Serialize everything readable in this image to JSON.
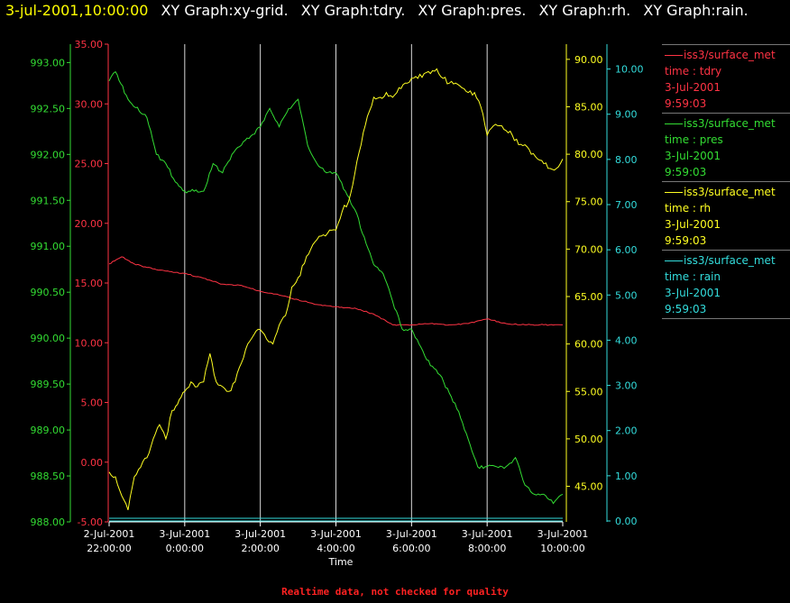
{
  "header": {
    "timestamp": "3-jul-2001,10:00:00",
    "graph_titles": [
      "XY Graph:xy-grid.",
      "XY Graph:tdry.",
      "XY Graph:pres.",
      "XY Graph:rh.",
      "XY Graph:rain."
    ]
  },
  "footer": {
    "note": "Realtime data, not checked for quality"
  },
  "colors": {
    "timestamp": "#ffff00",
    "titles": "#ffffff",
    "tdry": "#ff3344",
    "pres": "#33dd33",
    "rh": "#ffff22",
    "rain": "#33dddd",
    "grid": "#ffffff",
    "footer": "#ff2222"
  },
  "legend": [
    {
      "series": "tdry",
      "name": "iss3/surface_met",
      "var": "time : tdry",
      "date": "3-Jul-2001",
      "time": "9:59:03"
    },
    {
      "series": "pres",
      "name": "iss3/surface_met",
      "var": "time : pres",
      "date": "3-Jul-2001",
      "time": "9:59:03"
    },
    {
      "series": "rh",
      "name": "iss3/surface_met",
      "var": "time : rh",
      "date": "3-Jul-2001",
      "time": "9:59:03"
    },
    {
      "series": "rain",
      "name": "iss3/surface_met",
      "var": "time : rain",
      "date": "3-Jul-2001",
      "time": "9:59:03"
    }
  ],
  "chart_data": {
    "type": "line",
    "xlabel": "Time",
    "x_range": [
      "2-Jul-2001 22:00:00",
      "3-Jul-2001 10:00:00"
    ],
    "x_ticks": [
      {
        "date": "2-Jul-2001",
        "time": "22:00:00"
      },
      {
        "date": "3-Jul-2001",
        "time": "0:00:00"
      },
      {
        "date": "3-Jul-2001",
        "time": "2:00:00"
      },
      {
        "date": "3-Jul-2001",
        "time": "4:00:00"
      },
      {
        "date": "3-Jul-2001",
        "time": "6:00:00"
      },
      {
        "date": "3-Jul-2001",
        "time": "8:00:00"
      },
      {
        "date": "3-Jul-2001",
        "time": "10:00:00"
      }
    ],
    "grid": "vertical",
    "axes": {
      "pres": {
        "side": "left",
        "ylim": [
          988.0,
          993.2
        ],
        "ticks": [
          "988.00",
          "988.50",
          "989.00",
          "989.50",
          "990.00",
          "990.50",
          "991.00",
          "991.50",
          "992.00",
          "992.50",
          "993.00"
        ]
      },
      "tdry": {
        "side": "left",
        "ylim": [
          -5,
          35
        ],
        "ticks": [
          "-5.00",
          "0.00",
          "5.00",
          "10.00",
          "15.00",
          "20.00",
          "25.00",
          "30.00",
          "35.00"
        ]
      },
      "rh": {
        "side": "right",
        "ylim": [
          41.25,
          91.6
        ],
        "ticks": [
          "45.00",
          "50.00",
          "55.00",
          "60.00",
          "65.00",
          "70.00",
          "75.00",
          "80.00",
          "85.00",
          "90.00"
        ]
      },
      "rain": {
        "side": "right",
        "ylim": [
          -0.02,
          10.55
        ],
        "ticks": [
          "0.00",
          "1.00",
          "2.00",
          "3.00",
          "4.00",
          "5.00",
          "6.00",
          "7.00",
          "8.00",
          "9.00",
          "10.00"
        ]
      }
    },
    "series": [
      {
        "key": "tdry",
        "x": [
          "22:00",
          "22:20",
          "22:40",
          "23:00",
          "23:30",
          "0:00",
          "0:30",
          "1:00",
          "1:30",
          "2:00",
          "2:30",
          "3:00",
          "3:30",
          "4:00",
          "4:30",
          "5:00",
          "5:30",
          "6:00",
          "6:30",
          "7:00",
          "7:30",
          "8:00",
          "8:30",
          "9:00",
          "9:30",
          "10:00"
        ],
        "values": [
          16.6,
          17.2,
          16.6,
          16.3,
          16.0,
          15.8,
          15.4,
          14.9,
          14.8,
          14.3,
          14.0,
          13.6,
          13.2,
          13.0,
          12.9,
          12.4,
          11.5,
          11.5,
          11.6,
          11.5,
          11.6,
          12.0,
          11.6,
          11.5,
          11.5,
          11.5
        ]
      },
      {
        "key": "pres",
        "x": [
          "22:00",
          "22:10",
          "22:30",
          "23:00",
          "23:15",
          "23:30",
          "23:45",
          "0:00",
          "0:15",
          "0:30",
          "0:45",
          "1:00",
          "1:15",
          "1:30",
          "1:45",
          "2:00",
          "2:15",
          "2:30",
          "2:45",
          "3:00",
          "3:15",
          "3:30",
          "3:45",
          "4:00",
          "4:15",
          "4:30",
          "4:45",
          "5:00",
          "5:15",
          "5:30",
          "5:45",
          "6:00",
          "6:15",
          "6:30",
          "6:45",
          "7:00",
          "7:15",
          "7:30",
          "7:45",
          "8:00",
          "8:15",
          "8:30",
          "8:45",
          "9:00",
          "9:15",
          "9:30",
          "9:45",
          "10:00"
        ],
        "values": [
          992.8,
          992.9,
          992.6,
          992.4,
          992.0,
          991.9,
          991.7,
          991.6,
          991.6,
          991.6,
          991.9,
          991.8,
          992.0,
          992.1,
          992.2,
          992.3,
          992.5,
          992.3,
          992.5,
          992.6,
          992.1,
          991.9,
          991.8,
          991.8,
          991.6,
          991.4,
          991.1,
          990.8,
          990.7,
          990.4,
          990.1,
          990.1,
          989.9,
          989.7,
          989.6,
          989.4,
          989.2,
          988.9,
          988.6,
          988.6,
          988.6,
          988.6,
          988.7,
          988.4,
          988.3,
          988.3,
          988.2,
          988.3
        ]
      },
      {
        "key": "rh",
        "x": [
          "22:00",
          "22:10",
          "22:20",
          "22:30",
          "22:40",
          "22:50",
          "23:00",
          "23:10",
          "23:20",
          "23:30",
          "23:40",
          "0:00",
          "0:10",
          "0:20",
          "0:30",
          "0:40",
          "0:50",
          "1:00",
          "1:10",
          "1:20",
          "1:30",
          "1:40",
          "1:50",
          "2:00",
          "2:10",
          "2:20",
          "2:30",
          "2:40",
          "2:50",
          "3:00",
          "3:10",
          "3:20",
          "3:30",
          "3:40",
          "3:50",
          "4:00",
          "4:10",
          "4:20",
          "4:30",
          "4:40",
          "4:50",
          "5:00",
          "5:10",
          "5:20",
          "5:30",
          "5:40",
          "5:50",
          "6:00",
          "6:10",
          "6:20",
          "6:30",
          "6:40",
          "6:50",
          "7:00",
          "7:10",
          "7:20",
          "7:30",
          "7:40",
          "7:50",
          "8:00",
          "8:10",
          "8:20",
          "8:30",
          "8:40",
          "8:50",
          "9:00",
          "9:10",
          "9:20",
          "9:30",
          "9:40",
          "9:50",
          "10:00"
        ],
        "values": [
          46.5,
          46.0,
          44.0,
          42.5,
          46.0,
          47.0,
          48.0,
          50.0,
          51.5,
          50.0,
          53.0,
          55.0,
          56.0,
          55.5,
          56.0,
          59.0,
          56.0,
          55.5,
          55.0,
          56.0,
          58.0,
          60.0,
          61.0,
          61.5,
          60.5,
          60.0,
          62.0,
          63.0,
          66.0,
          67.0,
          68.5,
          70.0,
          71.0,
          71.5,
          72.0,
          72.0,
          74.0,
          75.0,
          78.0,
          81.0,
          84.0,
          86.0,
          86.0,
          86.5,
          86.0,
          87.0,
          87.5,
          88.0,
          88.0,
          88.5,
          88.5,
          89.0,
          88.0,
          87.5,
          87.5,
          87.0,
          86.5,
          86.5,
          85.0,
          82.0,
          83.0,
          83.0,
          82.5,
          82.0,
          81.0,
          81.0,
          80.0,
          79.5,
          79.0,
          78.5,
          78.5,
          79.5
        ]
      },
      {
        "key": "rain",
        "x": [
          "22:00",
          "10:00"
        ],
        "values": [
          0.0,
          0.0
        ]
      }
    ]
  }
}
